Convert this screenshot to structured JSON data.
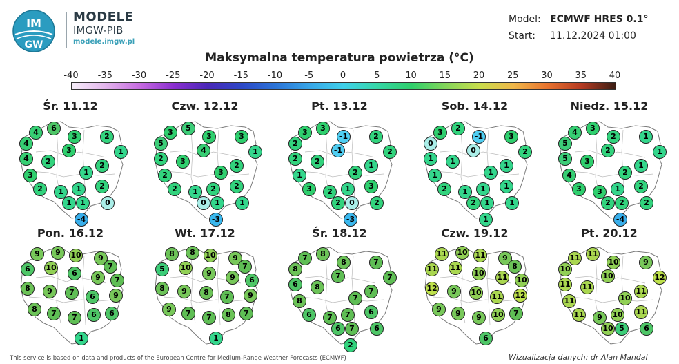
{
  "brand": {
    "logo_text_top": "IM",
    "logo_text_bottom": "GW",
    "title": "MODELE",
    "subtitle": "IMGW-PIB",
    "url": "modele.imgw.pl"
  },
  "meta": {
    "model_label": "Model:",
    "model_value": "ECMWF HRES 0.1°",
    "start_label": "Start:",
    "start_value": "11.12.2024 01:00"
  },
  "title": "Maksymalna temperatura powietrza (°C)",
  "colorbar": {
    "ticks": [
      "-40",
      "-35",
      "-30",
      "-25",
      "-20",
      "-15",
      "-10",
      "-5",
      "0",
      "5",
      "10",
      "15",
      "20",
      "25",
      "30",
      "35",
      "40"
    ]
  },
  "panels": [
    {
      "title": "Śr. 11.12",
      "values": [
        4,
        6,
        4,
        3,
        2,
        4,
        2,
        3,
        1,
        3,
        1,
        2,
        2,
        1,
        1,
        2,
        1,
        1,
        0,
        -4
      ]
    },
    {
      "title": "Czw. 12.12",
      "values": [
        3,
        5,
        5,
        3,
        3,
        2,
        3,
        4,
        1,
        2,
        3,
        2,
        2,
        1,
        2,
        2,
        0,
        1,
        1,
        -3
      ]
    },
    {
      "title": "Pt. 13.12",
      "values": [
        3,
        3,
        2,
        -1,
        2,
        2,
        2,
        -1,
        2,
        1,
        2,
        1,
        3,
        2,
        1,
        3,
        2,
        0,
        2,
        -3
      ]
    },
    {
      "title": "Sob. 14.12",
      "values": [
        3,
        2,
        0,
        -1,
        3,
        1,
        1,
        0,
        2,
        1,
        1,
        1,
        2,
        1,
        1,
        1,
        2,
        1,
        1,
        1
      ]
    },
    {
      "title": "Niedz. 15.12",
      "values": [
        4,
        3,
        5,
        2,
        1,
        5,
        3,
        2,
        1,
        4,
        2,
        1,
        3,
        3,
        1,
        2,
        2,
        2,
        2,
        -4
      ]
    },
    {
      "title": "Pon. 16.12",
      "values": [
        9,
        9,
        10,
        9,
        7,
        6,
        10,
        6,
        9,
        7,
        8,
        9,
        7,
        6,
        9,
        8,
        7,
        7,
        6,
        6,
        1
      ]
    },
    {
      "title": "Wt. 17.12",
      "values": [
        8,
        8,
        10,
        9,
        7,
        5,
        10,
        9,
        9,
        6,
        8,
        9,
        8,
        7,
        9,
        9,
        7,
        7,
        8,
        7,
        1
      ]
    },
    {
      "title": "Śr. 18.12",
      "values": [
        7,
        8,
        8,
        8,
        7,
        6,
        8,
        7,
        7,
        8,
        7,
        7,
        6,
        7,
        7,
        6,
        6,
        7,
        6,
        2
      ]
    },
    {
      "title": "Czw. 19.12",
      "values": [
        11,
        10,
        11,
        9,
        8,
        11,
        11,
        10,
        11,
        10,
        12,
        9,
        10,
        11,
        12,
        9,
        9,
        9,
        10,
        7,
        6
      ]
    },
    {
      "title": "Pt. 20.12",
      "values": [
        11,
        11,
        10,
        10,
        9,
        11,
        11,
        10,
        12,
        11,
        10,
        11,
        11,
        9,
        10,
        11,
        10,
        5,
        6
      ]
    }
  ],
  "footer": {
    "left": "This service is based on data and products of the European Centre for Medium-Range Weather Forecasts (ECMWF)",
    "right": "Wizualizacja danych: dr Alan Mandal"
  }
}
